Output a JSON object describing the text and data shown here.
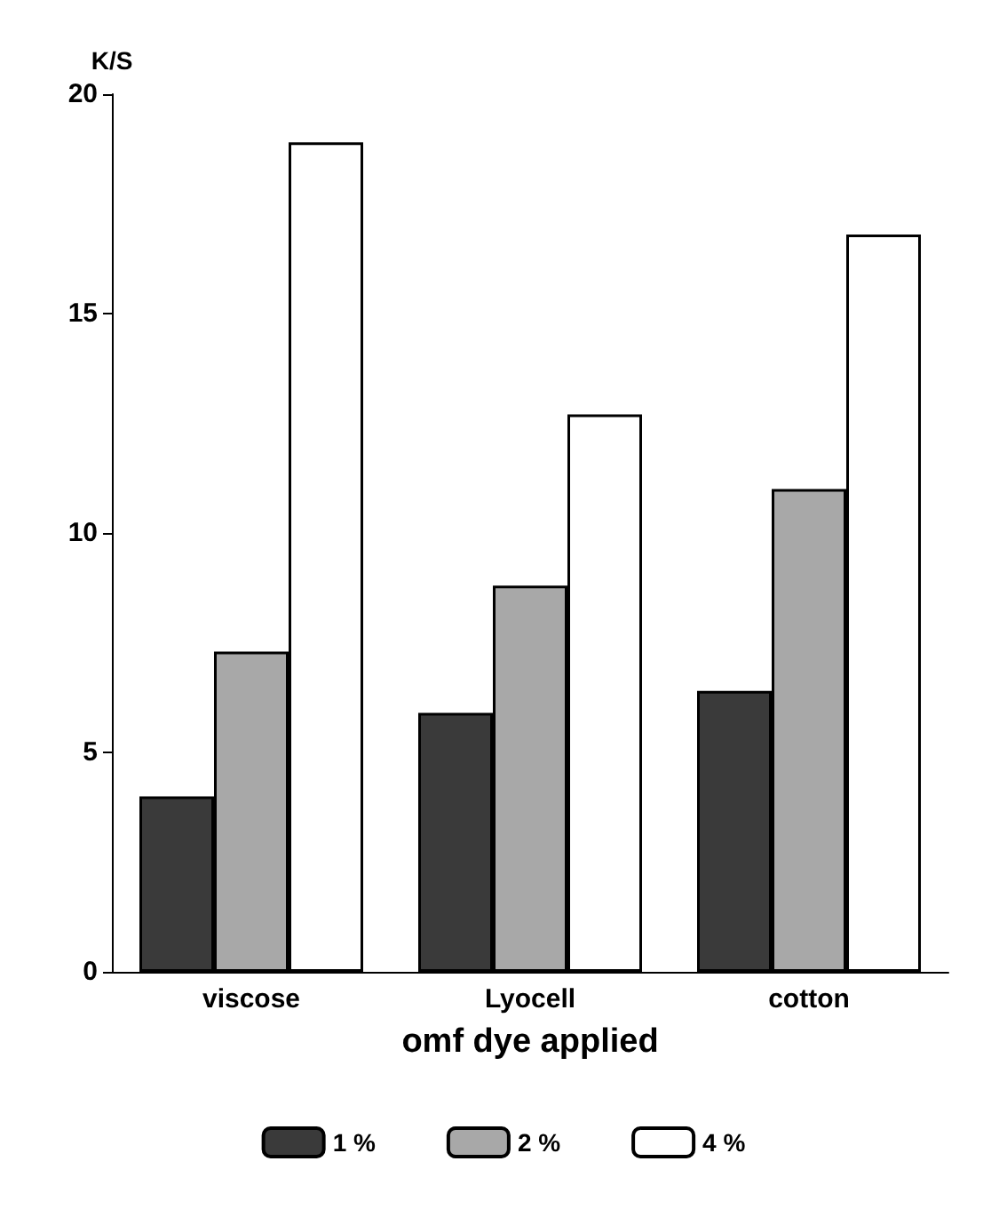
{
  "chart_data": {
    "type": "bar",
    "xlabel": "omf dye applied",
    "ylabel": "K/S",
    "categories": [
      "viscose",
      "Lyocell",
      "cotton"
    ],
    "series": [
      {
        "name": "1 %",
        "color": "#3a3a3a",
        "values": [
          4.0,
          5.9,
          6.4
        ]
      },
      {
        "name": "2 %",
        "color": "#a8a8a8",
        "values": [
          7.3,
          8.8,
          11.0
        ]
      },
      {
        "name": "4 %",
        "color": "#ffffff",
        "values": [
          18.9,
          12.7,
          16.8
        ]
      }
    ],
    "ylim": [
      0,
      20
    ],
    "yticks": [
      0,
      5,
      10,
      15,
      20
    ],
    "grid": false,
    "legend": "bottom"
  }
}
